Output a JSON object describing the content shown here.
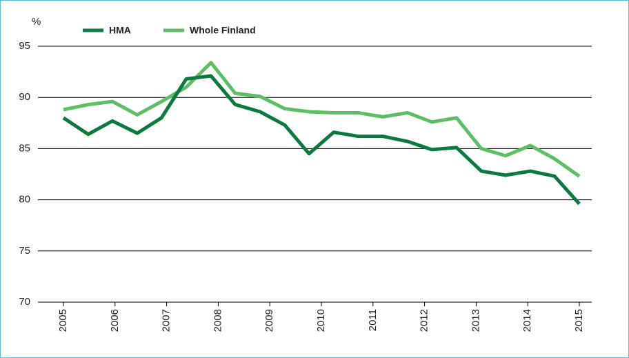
{
  "chart_data": {
    "type": "line",
    "ylabel": "%",
    "x": [
      2005,
      2005.48,
      2005.95,
      2006.43,
      2006.9,
      2007.38,
      2007.86,
      2008.33,
      2008.81,
      2009.29,
      2009.76,
      2010.24,
      2010.71,
      2011.19,
      2011.67,
      2012.14,
      2012.62,
      2013.1,
      2013.57,
      2014.05,
      2014.52,
      2015
    ],
    "series": [
      {
        "name": "HMA",
        "color": "#0b7a3e",
        "values": [
          88.0,
          86.4,
          87.7,
          86.5,
          88.0,
          91.8,
          92.1,
          89.3,
          88.6,
          87.3,
          84.5,
          86.6,
          86.2,
          86.2,
          85.7,
          84.9,
          85.1,
          82.8,
          82.4,
          82.8,
          82.3,
          79.6
        ]
      },
      {
        "name": "Whole Finland",
        "color": "#5cbf63",
        "values": [
          88.8,
          89.3,
          89.6,
          88.3,
          89.6,
          91.0,
          93.4,
          90.4,
          90.1,
          88.9,
          88.6,
          88.5,
          88.5,
          88.1,
          88.5,
          87.6,
          88.0,
          85.0,
          84.3,
          85.3,
          84.0,
          82.3
        ]
      }
    ],
    "xlim": [
      2005,
      2015
    ],
    "xticks": [
      2005,
      2006,
      2007,
      2008,
      2009,
      2010,
      2011,
      2012,
      2013,
      2014,
      2015
    ],
    "ylim": [
      70,
      95
    ],
    "yticks": [
      70,
      75,
      80,
      85,
      90,
      95
    ],
    "grid": true
  }
}
